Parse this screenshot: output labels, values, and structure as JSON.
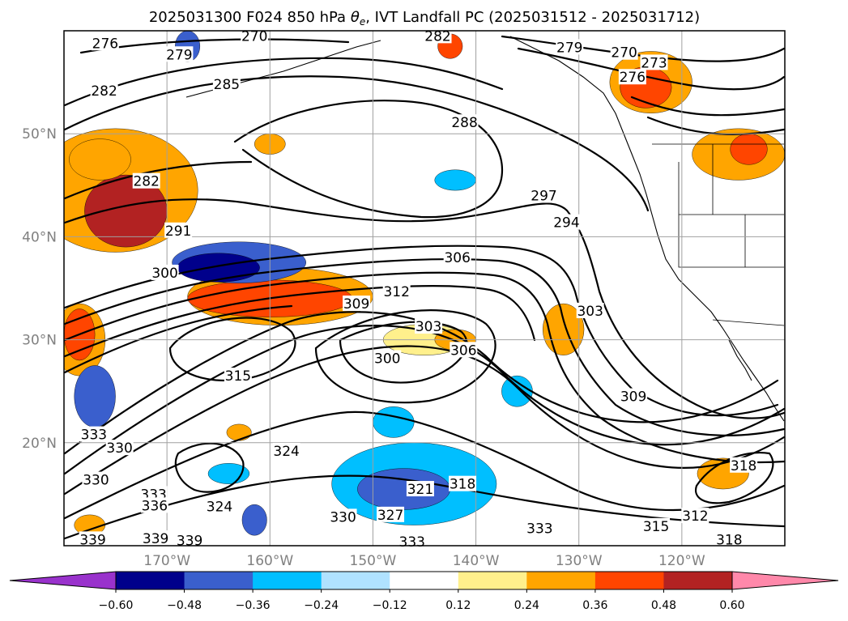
{
  "chart_data": {
    "type": "heatmap",
    "title": "2025031300 F024 850 hPa θe, IVT Landfall PC (2025031512 - 2025031712)",
    "title_parts": {
      "prefix": "2025031300 F024 850 hPa ",
      "theta": "θ",
      "sub": "e",
      "suffix": ", IVT Landfall PC (2025031512 - 2025031712)"
    },
    "map": {
      "lat_range": [
        10,
        60
      ],
      "lon_range": [
        -180,
        -110
      ],
      "lat_labels": [
        {
          "value": 50,
          "text": "50°N"
        },
        {
          "value": 40,
          "text": "40°N"
        },
        {
          "value": 30,
          "text": "30°N"
        },
        {
          "value": 20,
          "text": "20°N"
        }
      ],
      "lon_labels": [
        {
          "value": -170,
          "text": "170°W"
        },
        {
          "value": -160,
          "text": "160°W"
        },
        {
          "value": -150,
          "text": "150°W"
        },
        {
          "value": -140,
          "text": "140°W"
        },
        {
          "value": -130,
          "text": "130°W"
        },
        {
          "value": -120,
          "text": "120°W"
        }
      ],
      "grid": true,
      "grid_color": "#a0a0a0"
    },
    "colorbar": {
      "orientation": "horizontal",
      "extend": "both",
      "ticks": [
        "−0.60",
        "−0.48",
        "−0.36",
        "−0.24",
        "−0.12",
        "0.12",
        "0.24",
        "0.36",
        "0.48",
        "0.60"
      ],
      "colors": [
        "#9932cc",
        "#00008b",
        "#3a5fcd",
        "#00bfff",
        "#b0e2ff",
        "#ffffff",
        "#fff08c",
        "#ffa500",
        "#ff4500",
        "#b22222",
        "#ff88aa"
      ]
    },
    "contour_labels": [
      {
        "text": "276",
        "lon": -176.0,
        "lat": 58.8
      },
      {
        "text": "270",
        "lon": -161.5,
        "lat": 59.5
      },
      {
        "text": "279",
        "lon": -168.8,
        "lat": 57.7
      },
      {
        "text": "285",
        "lon": -164.2,
        "lat": 54.8
      },
      {
        "text": "282",
        "lon": -176.1,
        "lat": 54.2
      },
      {
        "text": "282",
        "lon": -143.7,
        "lat": 59.5
      },
      {
        "text": "279",
        "lon": -130.9,
        "lat": 58.4
      },
      {
        "text": "270",
        "lon": -125.6,
        "lat": 57.9
      },
      {
        "text": "273",
        "lon": -122.7,
        "lat": 56.9
      },
      {
        "text": "276",
        "lon": -124.8,
        "lat": 55.5
      },
      {
        "text": "288",
        "lon": -141.1,
        "lat": 51.1
      },
      {
        "text": "282",
        "lon": -172.0,
        "lat": 45.4
      },
      {
        "text": "291",
        "lon": -168.9,
        "lat": 40.6
      },
      {
        "text": "297",
        "lon": -133.4,
        "lat": 44.0
      },
      {
        "text": "294",
        "lon": -131.2,
        "lat": 41.4
      },
      {
        "text": "306",
        "lon": -141.8,
        "lat": 38.0
      },
      {
        "text": "300",
        "lon": -170.2,
        "lat": 36.5
      },
      {
        "text": "312",
        "lon": -147.7,
        "lat": 34.7
      },
      {
        "text": "309",
        "lon": -151.6,
        "lat": 33.5
      },
      {
        "text": "303",
        "lon": -128.9,
        "lat": 32.8
      },
      {
        "text": "303",
        "lon": -144.6,
        "lat": 31.3
      },
      {
        "text": "306",
        "lon": -141.2,
        "lat": 29.0
      },
      {
        "text": "300",
        "lon": -148.6,
        "lat": 28.2
      },
      {
        "text": "315",
        "lon": -163.1,
        "lat": 26.5
      },
      {
        "text": "309",
        "lon": -124.7,
        "lat": 24.5
      },
      {
        "text": "333",
        "lon": -177.1,
        "lat": 20.8
      },
      {
        "text": "330",
        "lon": -174.6,
        "lat": 19.5
      },
      {
        "text": "324",
        "lon": -158.4,
        "lat": 19.2
      },
      {
        "text": "330",
        "lon": -176.9,
        "lat": 16.4
      },
      {
        "text": "318",
        "lon": -141.3,
        "lat": 16.0
      },
      {
        "text": "321",
        "lon": -145.4,
        "lat": 15.5
      },
      {
        "text": "318",
        "lon": -114.0,
        "lat": 17.8
      },
      {
        "text": "333",
        "lon": -171.3,
        "lat": 15.0
      },
      {
        "text": "336",
        "lon": -171.2,
        "lat": 13.9
      },
      {
        "text": "324",
        "lon": -164.9,
        "lat": 13.8
      },
      {
        "text": "330",
        "lon": -152.9,
        "lat": 12.8
      },
      {
        "text": "327",
        "lon": -148.3,
        "lat": 13.0
      },
      {
        "text": "312",
        "lon": -118.7,
        "lat": 12.9
      },
      {
        "text": "315",
        "lon": -122.5,
        "lat": 11.9
      },
      {
        "text": "333",
        "lon": -133.8,
        "lat": 11.7
      },
      {
        "text": "333",
        "lon": -146.2,
        "lat": 10.4
      },
      {
        "text": "339",
        "lon": -177.2,
        "lat": 10.6
      },
      {
        "text": "339",
        "lon": -171.1,
        "lat": 10.7
      },
      {
        "text": "339",
        "lon": -167.8,
        "lat": 10.5
      },
      {
        "text": "318",
        "lon": -115.4,
        "lat": 10.6
      }
    ],
    "anomaly_patches": [
      {
        "lon": -174.0,
        "lat": 42.5,
        "rx": 4.0,
        "ry": 3.5,
        "color": "#b22222",
        "level": 0.48
      },
      {
        "lon": -175.0,
        "lat": 44.5,
        "rx": 8.0,
        "ry": 6.0,
        "color": "#ffa500",
        "level": 0.24
      },
      {
        "lon": -176.5,
        "lat": 47.5,
        "rx": 3.0,
        "ry": 2.0,
        "color": "#ffa500",
        "level": 0.24
      },
      {
        "lon": -165.0,
        "lat": 37.0,
        "rx": 4.0,
        "ry": 1.4,
        "color": "#00008b",
        "level": -0.48
      },
      {
        "lon": -163.0,
        "lat": 37.5,
        "rx": 6.5,
        "ry": 2.0,
        "color": "#3a5fcd",
        "level": -0.36
      },
      {
        "lon": -160.0,
        "lat": 34.0,
        "rx": 8.0,
        "ry": 1.8,
        "color": "#ff4500",
        "level": 0.36
      },
      {
        "lon": -159.0,
        "lat": 34.2,
        "rx": 9.0,
        "ry": 2.8,
        "color": "#ffa500",
        "level": 0.24
      },
      {
        "lon": -178.5,
        "lat": 30.5,
        "rx": 1.5,
        "ry": 2.5,
        "color": "#ff4500",
        "level": 0.36
      },
      {
        "lon": -178.5,
        "lat": 30.0,
        "rx": 2.5,
        "ry": 3.5,
        "color": "#ffa500",
        "level": 0.24
      },
      {
        "lon": -177.0,
        "lat": 24.5,
        "rx": 2.0,
        "ry": 3.0,
        "color": "#3a5fcd",
        "level": -0.36
      },
      {
        "lon": -147.0,
        "lat": 15.5,
        "rx": 4.5,
        "ry": 2.0,
        "color": "#3a5fcd",
        "level": -0.36
      },
      {
        "lon": -146.0,
        "lat": 16.0,
        "rx": 8.0,
        "ry": 4.0,
        "color": "#00bfff",
        "level": -0.24
      },
      {
        "lon": -136.0,
        "lat": 25.0,
        "rx": 1.5,
        "ry": 1.5,
        "color": "#00bfff",
        "level": -0.24
      },
      {
        "lon": -123.5,
        "lat": 54.5,
        "rx": 2.5,
        "ry": 2.0,
        "color": "#ff4500",
        "level": 0.36
      },
      {
        "lon": -123.0,
        "lat": 55.0,
        "rx": 4.0,
        "ry": 3.0,
        "color": "#ffa500",
        "level": 0.24
      },
      {
        "lon": -114.5,
        "lat": 48.0,
        "rx": 4.5,
        "ry": 2.5,
        "color": "#ffa500",
        "level": 0.24
      },
      {
        "lon": -113.5,
        "lat": 48.5,
        "rx": 1.8,
        "ry": 1.5,
        "color": "#ff4500",
        "level": 0.36
      },
      {
        "lon": -142.0,
        "lat": 30.0,
        "rx": 2.0,
        "ry": 1.0,
        "color": "#ffa500",
        "level": 0.24
      },
      {
        "lon": -145.0,
        "lat": 30.0,
        "rx": 4.0,
        "ry": 1.5,
        "color": "#fff08c",
        "level": 0.12
      },
      {
        "lon": -131.5,
        "lat": 31.0,
        "rx": 2.0,
        "ry": 2.5,
        "color": "#ffa500",
        "level": 0.24
      },
      {
        "lon": -160.0,
        "lat": 49.0,
        "rx": 1.5,
        "ry": 1.0,
        "color": "#ffa500",
        "level": 0.24
      },
      {
        "lon": -168.0,
        "lat": 58.5,
        "rx": 1.2,
        "ry": 1.5,
        "color": "#3a5fcd",
        "level": -0.36
      },
      {
        "lon": -142.5,
        "lat": 58.5,
        "rx": 1.2,
        "ry": 1.2,
        "color": "#ff4500",
        "level": 0.36
      },
      {
        "lon": -116.0,
        "lat": 17.0,
        "rx": 2.5,
        "ry": 1.5,
        "color": "#ffa500",
        "level": 0.24
      },
      {
        "lon": -177.5,
        "lat": 12.0,
        "rx": 1.5,
        "ry": 1.0,
        "color": "#ffa500",
        "level": 0.24
      },
      {
        "lon": -161.5,
        "lat": 12.5,
        "rx": 1.2,
        "ry": 1.5,
        "color": "#3a5fcd",
        "level": -0.36
      },
      {
        "lon": -163.0,
        "lat": 21.0,
        "rx": 1.2,
        "ry": 0.8,
        "color": "#ffa500",
        "level": 0.24
      },
      {
        "lon": -164.0,
        "lat": 17.0,
        "rx": 2.0,
        "ry": 1.0,
        "color": "#00bfff",
        "level": -0.24
      },
      {
        "lon": -148.0,
        "lat": 22.0,
        "rx": 2.0,
        "ry": 1.5,
        "color": "#00bfff",
        "level": -0.24
      },
      {
        "lon": -142.0,
        "lat": 45.5,
        "rx": 2.0,
        "ry": 1.0,
        "color": "#00bfff",
        "level": -0.24
      }
    ]
  }
}
